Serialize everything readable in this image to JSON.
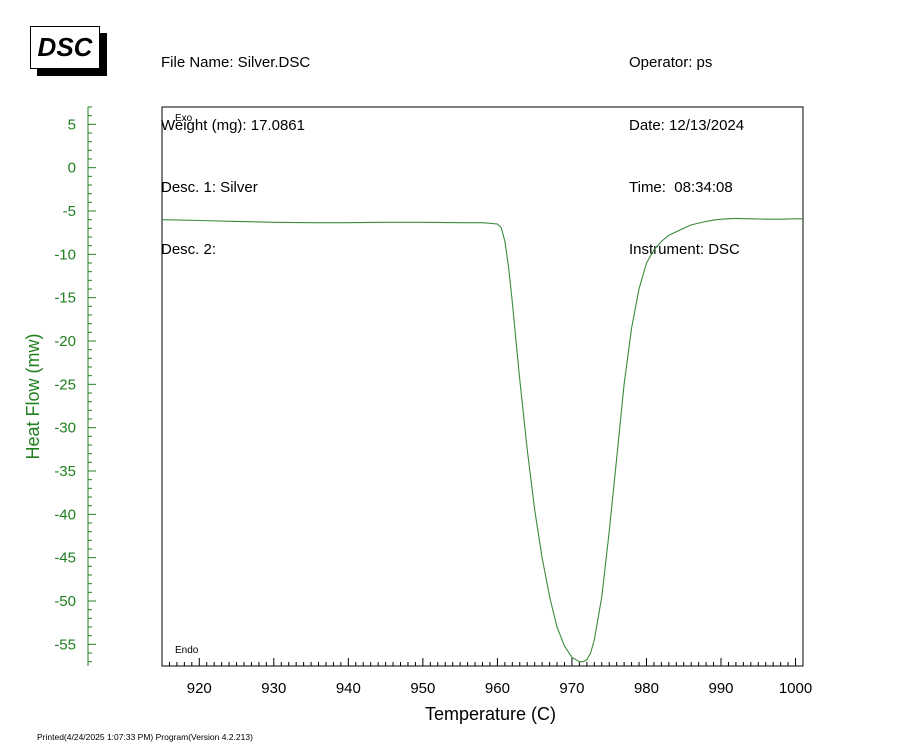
{
  "logo": "DSC",
  "header": {
    "file_name": "File Name: Silver.DSC",
    "weight": "Weight (mg): 17.0861",
    "desc1": "Desc. 1: Silver",
    "desc2": "Desc. 2:",
    "operator": "Operator: ps",
    "date": "Date: 12/13/2024",
    "time": "Time:  08:34:08",
    "instrument": "Instrument: DSC"
  },
  "footer": "Printed(4/24/2025 1:07:33 PM) Program(Version 4.2.213)",
  "colors": {
    "y_axis": "#208020",
    "curve": "#3a8a3a"
  },
  "chart_data": {
    "type": "line",
    "xlabel": "Temperature (C)",
    "ylabel": "Heat Flow (mw)",
    "xlim": [
      915,
      1001
    ],
    "ylim": [
      -57.5,
      7
    ],
    "xticks": [
      920,
      930,
      940,
      950,
      960,
      970,
      980,
      990,
      1000
    ],
    "yticks": [
      5,
      0,
      -5,
      -10,
      -15,
      -20,
      -25,
      -30,
      -35,
      -40,
      -45,
      -50,
      -55
    ],
    "annotations": {
      "top": "Exo",
      "bottom": "Endo"
    },
    "grid": false,
    "series": [
      {
        "x": [
          915,
          920,
          925,
          930,
          935,
          940,
          945,
          950,
          955,
          958,
          960,
          960.5,
          961,
          961.5,
          962,
          962.5,
          963,
          964,
          965,
          966,
          967,
          968,
          969,
          970,
          971,
          971.5,
          972,
          972.5,
          973,
          974,
          975,
          976,
          977,
          978,
          979,
          980,
          981,
          982,
          983,
          984,
          985,
          986,
          987,
          988,
          989,
          990,
          991,
          992,
          994,
          996,
          998,
          1000,
          1001
        ],
        "y": [
          -6.0,
          -6.1,
          -6.2,
          -6.3,
          -6.35,
          -6.35,
          -6.3,
          -6.3,
          -6.35,
          -6.35,
          -6.5,
          -6.9,
          -8.5,
          -11.5,
          -15.5,
          -20.0,
          -24.5,
          -32.5,
          -39.5,
          -45.0,
          -49.5,
          -53.0,
          -55.2,
          -56.5,
          -57.0,
          -57.0,
          -56.8,
          -56.0,
          -54.5,
          -49.5,
          -42.0,
          -33.5,
          -25.0,
          -18.5,
          -14.0,
          -11.0,
          -9.5,
          -8.5,
          -7.8,
          -7.4,
          -7.0,
          -6.6,
          -6.4,
          -6.2,
          -6.05,
          -5.95,
          -5.9,
          -5.85,
          -5.9,
          -5.95,
          -5.95,
          -5.9,
          -5.9
        ]
      }
    ]
  }
}
